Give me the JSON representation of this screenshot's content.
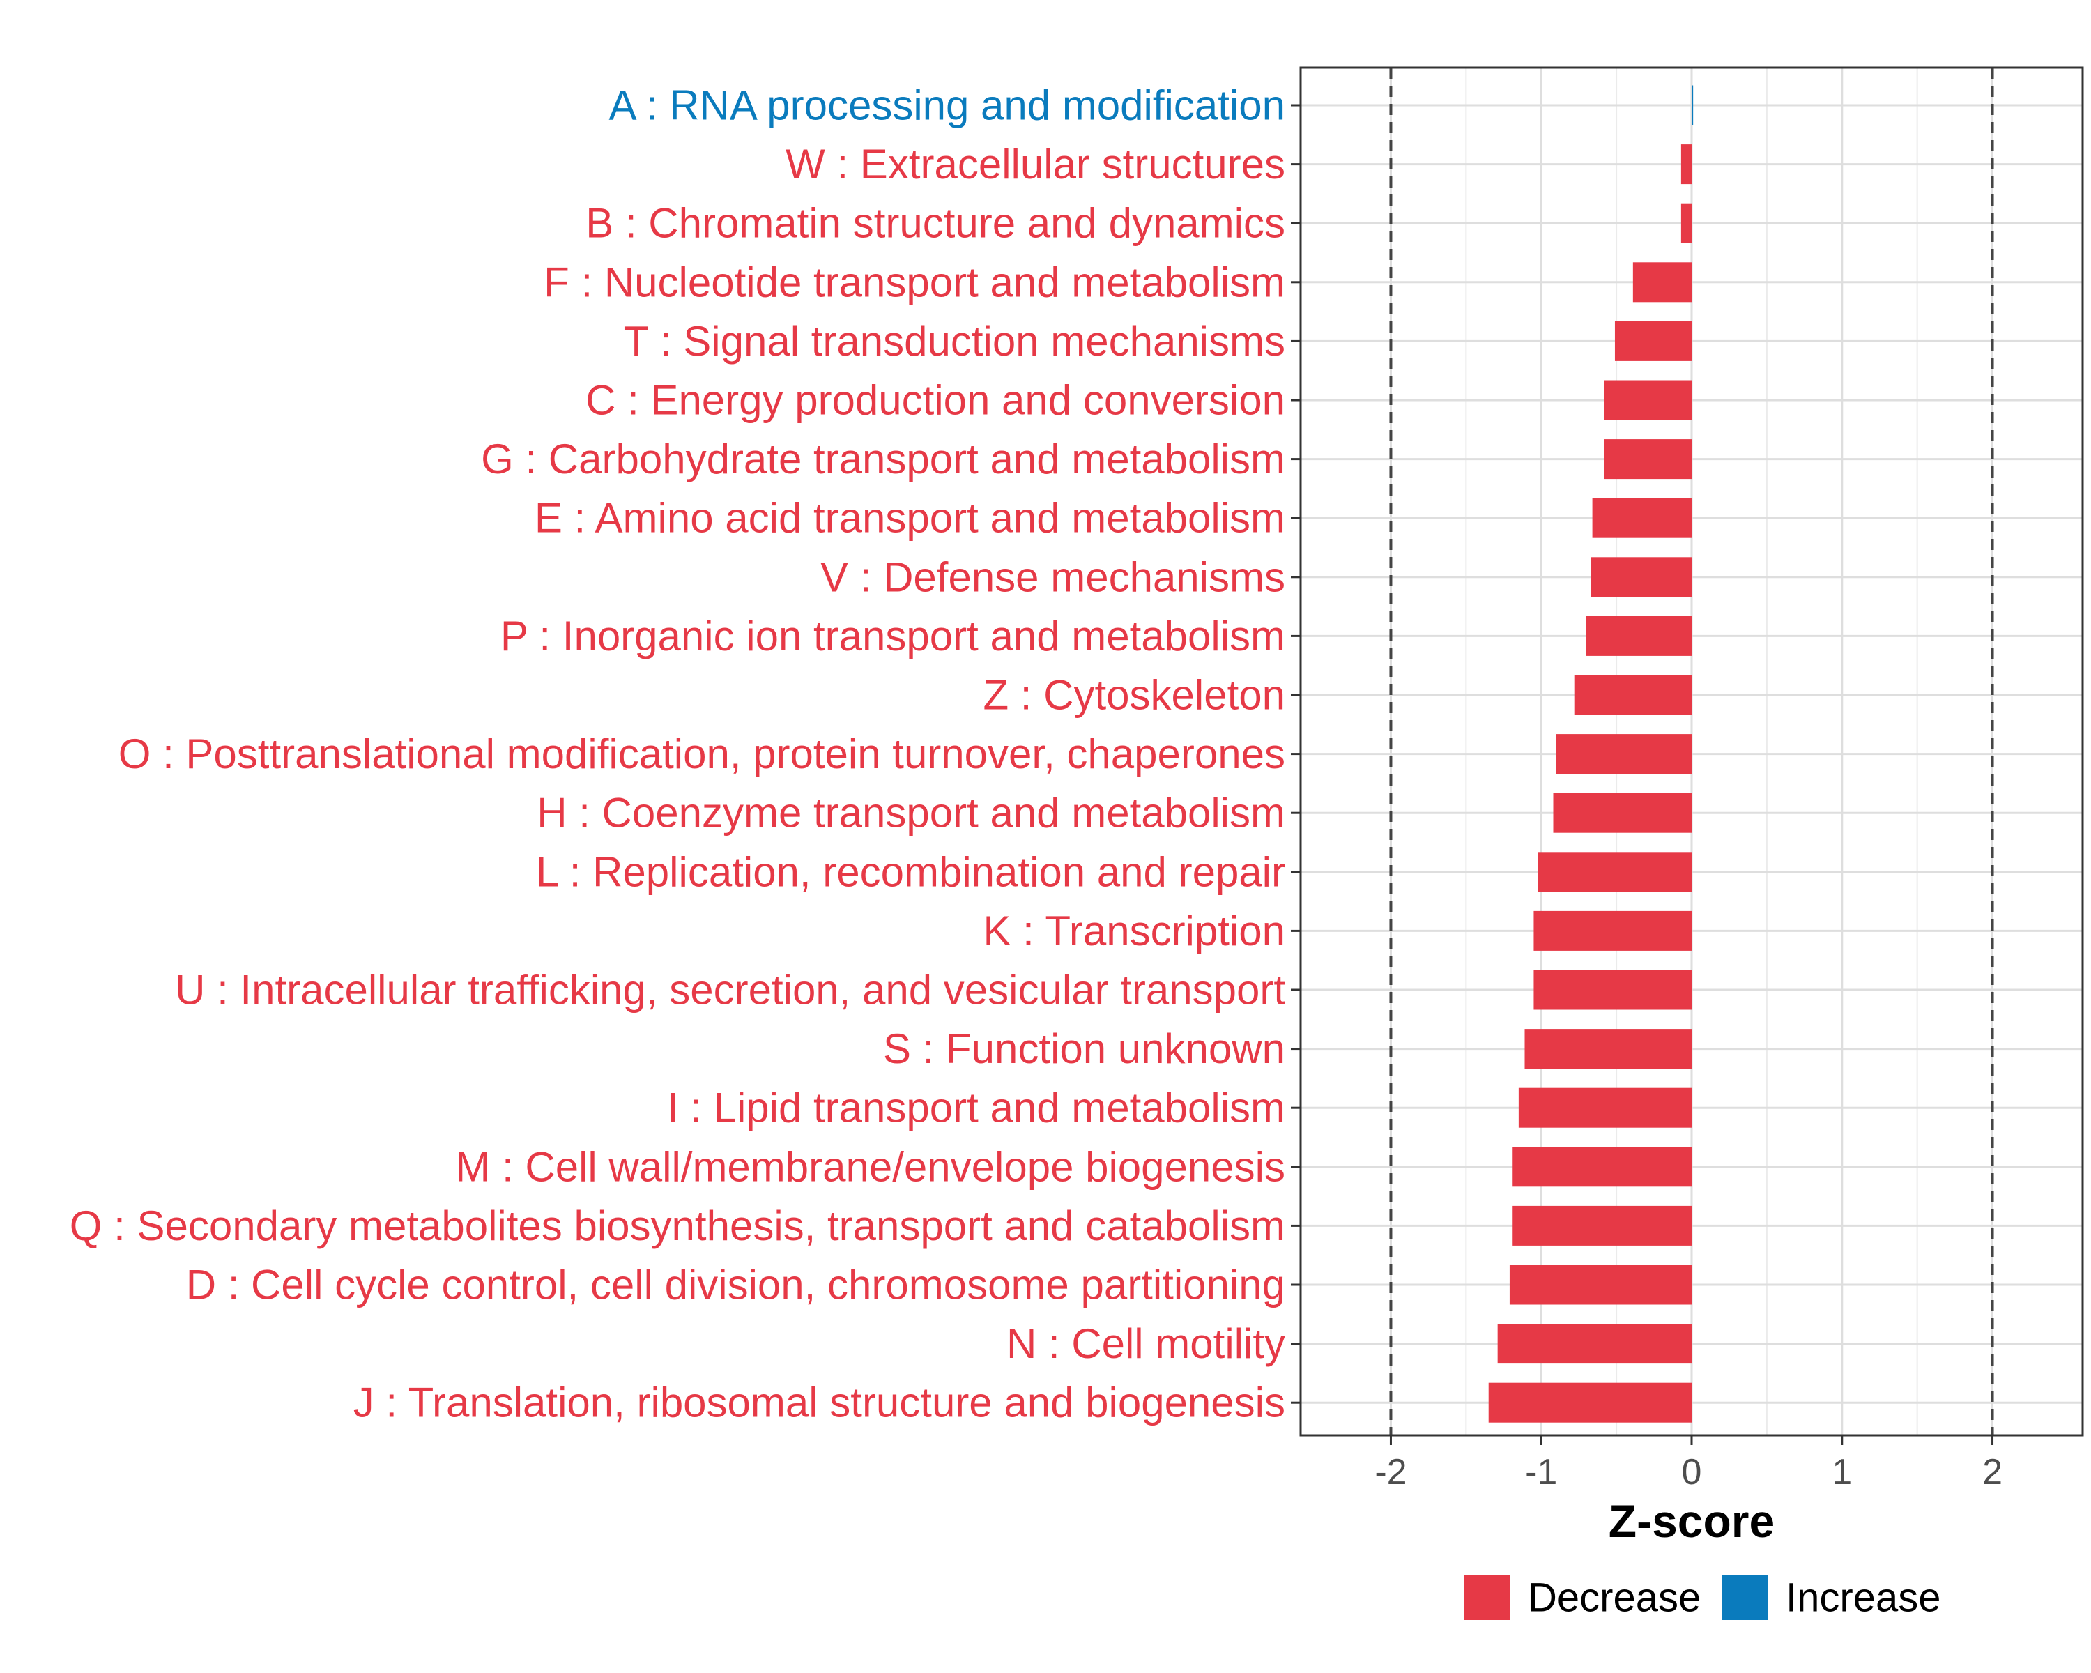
{
  "chart_data": {
    "type": "bar",
    "orientation": "horizontal",
    "title": "",
    "xlabel": "Z-score",
    "ylabel": "",
    "xlim": [
      -2.6,
      2.6
    ],
    "xticks": [
      -2,
      -1,
      0,
      1,
      2
    ],
    "xtick_labels": [
      "-2",
      "-1",
      "0",
      "1",
      "2"
    ],
    "reference_lines": [
      -2,
      2
    ],
    "grid": true,
    "legend_position": "bottom",
    "colors": {
      "Decrease": "#e63946",
      "Increase": "#0a7bbd"
    },
    "legend": [
      {
        "name": "Decrease",
        "color": "#e63946"
      },
      {
        "name": "Increase",
        "color": "#0a7bbd"
      }
    ],
    "categories": [
      "A : RNA processing and modification",
      "W : Extracellular structures",
      "B : Chromatin structure and dynamics",
      "F : Nucleotide transport and metabolism",
      "T : Signal transduction mechanisms",
      "C : Energy production and conversion",
      "G : Carbohydrate transport and metabolism",
      "E : Amino acid transport and metabolism",
      "V : Defense mechanisms",
      "P : Inorganic ion transport and metabolism",
      "Z : Cytoskeleton",
      "O : Posttranslational modification, protein turnover, chaperones",
      "H : Coenzyme transport and metabolism",
      "L : Replication, recombination and repair",
      "K : Transcription",
      "U : Intracellular trafficking, secretion, and vesicular transport",
      "S : Function unknown",
      "I : Lipid transport and metabolism",
      "M : Cell wall/membrane/envelope biogenesis",
      "Q : Secondary metabolites biosynthesis, transport and catabolism",
      "D : Cell cycle control, cell division, chromosome partitioning",
      "N : Cell motility",
      "J : Translation, ribosomal structure and biogenesis"
    ],
    "values": [
      0.01,
      -0.07,
      -0.07,
      -0.39,
      -0.51,
      -0.58,
      -0.58,
      -0.66,
      -0.67,
      -0.7,
      -0.78,
      -0.9,
      -0.92,
      -1.02,
      -1.05,
      -1.05,
      -1.11,
      -1.15,
      -1.19,
      -1.19,
      -1.21,
      -1.29,
      -1.35
    ],
    "direction": [
      "Increase",
      "Decrease",
      "Decrease",
      "Decrease",
      "Decrease",
      "Decrease",
      "Decrease",
      "Decrease",
      "Decrease",
      "Decrease",
      "Decrease",
      "Decrease",
      "Decrease",
      "Decrease",
      "Decrease",
      "Decrease",
      "Decrease",
      "Decrease",
      "Decrease",
      "Decrease",
      "Decrease",
      "Decrease",
      "Decrease"
    ]
  }
}
